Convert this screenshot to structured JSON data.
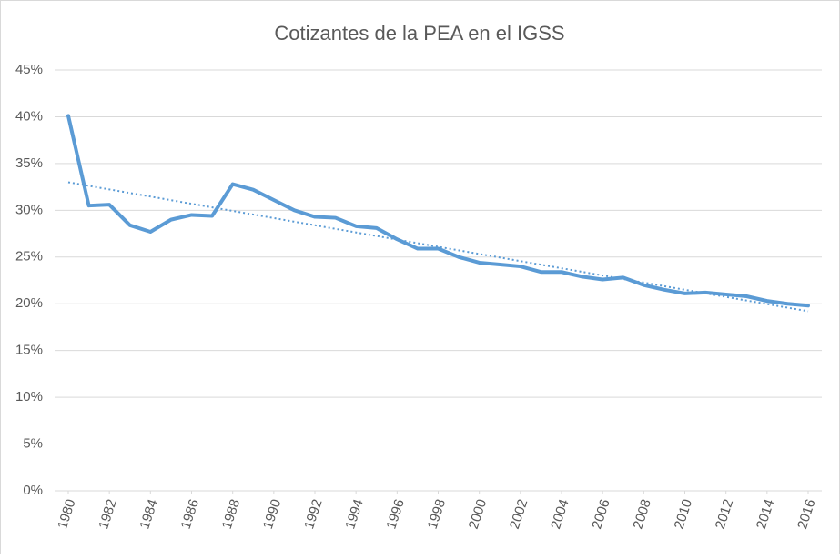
{
  "chart_data": {
    "type": "line",
    "title": "Cotizantes de la PEA en el IGSS",
    "x": [
      1980,
      1981,
      1982,
      1983,
      1984,
      1985,
      1986,
      1987,
      1988,
      1989,
      1990,
      1991,
      1992,
      1993,
      1994,
      1995,
      1996,
      1997,
      1998,
      1999,
      2000,
      2001,
      2002,
      2003,
      2004,
      2005,
      2006,
      2007,
      2008,
      2009,
      2010,
      2011,
      2012,
      2013,
      2014,
      2015,
      2016
    ],
    "series": [
      {
        "color": "#5b9bd5",
        "values": [
          40.1,
          30.5,
          30.6,
          28.4,
          27.7,
          29.0,
          29.5,
          29.4,
          32.8,
          32.2,
          31.1,
          30.0,
          29.3,
          29.2,
          28.3,
          28.1,
          26.9,
          25.9,
          25.9,
          25.0,
          24.4,
          24.2,
          24.0,
          23.4,
          23.4,
          22.9,
          22.6,
          22.8,
          22.0,
          21.5,
          21.1,
          21.2,
          21.0,
          20.8,
          20.3,
          20.0,
          19.8
        ]
      }
    ],
    "trendline": {
      "color": "#5b9bd5",
      "x": [
        1980,
        2016
      ],
      "values": [
        33.0,
        19.2
      ]
    },
    "xlim": [
      1980,
      2016
    ],
    "xticks": [
      1980,
      1982,
      1984,
      1986,
      1988,
      1990,
      1992,
      1994,
      1996,
      1998,
      2000,
      2002,
      2004,
      2006,
      2008,
      2010,
      2012,
      2014,
      2016
    ],
    "ylim": [
      0,
      45
    ],
    "yticks": [
      {
        "value": 0,
        "label": "0%"
      },
      {
        "value": 5,
        "label": "5%"
      },
      {
        "value": 10,
        "label": "10%"
      },
      {
        "value": 15,
        "label": "15%"
      },
      {
        "value": 20,
        "label": "20%"
      },
      {
        "value": 25,
        "label": "25%"
      },
      {
        "value": 30,
        "label": "30%"
      },
      {
        "value": 35,
        "label": "35%"
      },
      {
        "value": 40,
        "label": "40%"
      },
      {
        "value": 45,
        "label": "45%"
      }
    ],
    "grid": true
  }
}
